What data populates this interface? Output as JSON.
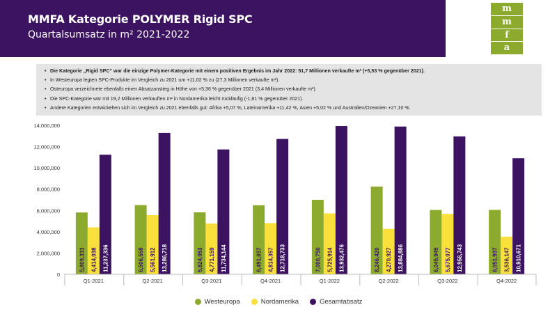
{
  "header": {
    "title": "MMFA Kategorie POLYMER Rigid SPC",
    "subtitle": "Quartalsumsatz in m² 2021-2022"
  },
  "logo": {
    "letters": [
      "m",
      "m",
      "f",
      "a"
    ],
    "color": "#8cab2e"
  },
  "notes": [
    "Die Kategorie „Rigid SPC“ war die einzige Polymer-Kategorie mit einem positiven Ergebnis im Jahr 2022: 51,7 Millionen verkaufte m² (+5,53 % gegenüber 2021).",
    "In Westeuropa legten SPC-Produkte im Vergleich zu 2021 um +11,02 % zu (27,3 Millionen verkaufte m²).",
    "Osteuropa verzeichnete ebenfalls einen Absatzanstieg in Höhe von +5,36 % gegenüber 2021 (3,4 Millionen verkaufte m²).",
    "Die SPC-Kategorie war mit 19,2 Millionen verkauften m² in Nordamerika leicht rückläufig (-1,81 % gegenüber 2021).",
    "Andere Kategorien entwickelten sich im Vergleich zu 2021 ebenfalls gut: Afrika +5,07 %, Lateinamerika +11,42 %, Asien +5,02 % und Australien/Ozeanien +27,10 %."
  ],
  "chart_data": {
    "type": "bar",
    "categories": [
      "Q1-2021",
      "Q2-2021",
      "Q3-2021",
      "Q4-2021",
      "Q1-2022",
      "Q2-2022",
      "Q3-2022",
      "Q4-2022"
    ],
    "series": [
      {
        "name": "Westeuropa",
        "color": "#8cab2e",
        "values": [
          5809333,
          6506558,
          5824053,
          6491657,
          7000750,
          8246420,
          6045945,
          6051937
        ],
        "labels": [
          "5,809,333",
          "6,506,558",
          "5,824,053",
          "6,491,657",
          "7,000,750",
          "8,246,420",
          "6,045,945",
          "6,051,937"
        ]
      },
      {
        "name": "Nordamerika",
        "color": "#f9e03b",
        "values": [
          4414038,
          5561912,
          4771159,
          4814357,
          5725914,
          4270927,
          5675077,
          3536147
        ],
        "labels": [
          "4,414,038",
          "5,561,912",
          "4,771,159",
          "4,814,357",
          "5,725,914",
          "4,270,927",
          "5,675,077",
          "3,536,147"
        ]
      },
      {
        "name": "Gesamtabsatz",
        "color": "#3c1361",
        "values": [
          11237336,
          13286718,
          11734144,
          12718733,
          13932476,
          13884886,
          12956743,
          10910671
        ],
        "labels": [
          "11,237,336",
          "13,286,718",
          "11,734,144",
          "12,718,733",
          "13,932,476",
          "13,884,886",
          "12,956,743",
          "10,910,671"
        ]
      }
    ],
    "yticks": [
      "0",
      "2,000,000",
      "4,000,000",
      "6,000,000",
      "8,000,000",
      "10,000,000",
      "12,000,000",
      "14,000,000"
    ],
    "ylim": [
      0,
      14000000
    ],
    "grid": false,
    "legend": "bottom"
  }
}
